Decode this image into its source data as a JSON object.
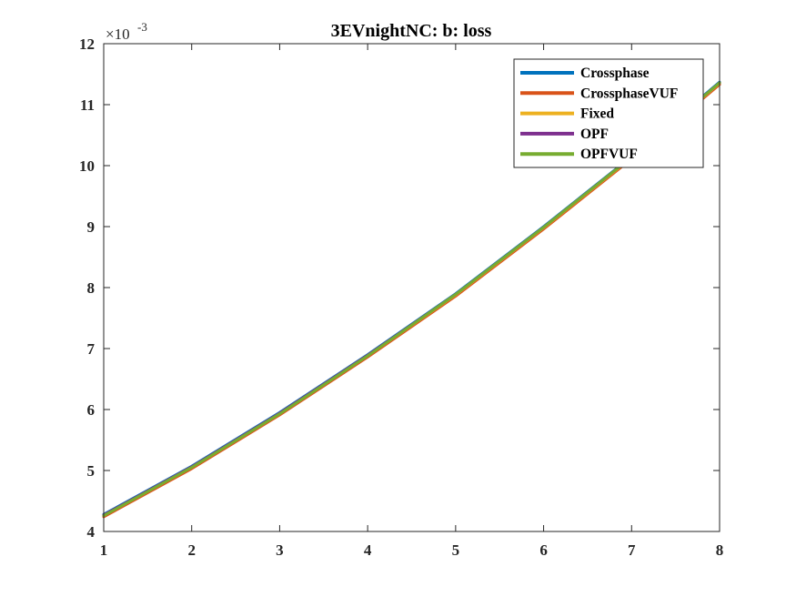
{
  "chart_data": {
    "type": "line",
    "title": "3EVnightNC: b: loss",
    "xlabel": "",
    "ylabel": "",
    "xlim": [
      1,
      8
    ],
    "ylim": [
      0.004,
      0.012
    ],
    "x_ticks": [
      "1",
      "2",
      "3",
      "4",
      "5",
      "6",
      "7",
      "8"
    ],
    "y_ticks": [
      "4",
      "5",
      "6",
      "7",
      "8",
      "9",
      "10",
      "11",
      "12"
    ],
    "y_exponent": {
      "base": "×10",
      "power": "-3"
    },
    "grid": false,
    "legend_position": "top-right",
    "x": [
      1,
      2,
      3,
      4,
      5,
      6,
      7,
      8
    ],
    "series": [
      {
        "name": "Crossphase",
        "color": "#0072BD",
        "values": [
          0.00428,
          0.00507,
          0.00595,
          0.0069,
          0.0079,
          0.009,
          0.01015,
          0.01137
        ]
      },
      {
        "name": "CrossphaseVUF",
        "color": "#D95319",
        "values": [
          0.00424,
          0.00503,
          0.00591,
          0.00686,
          0.00786,
          0.00896,
          0.01011,
          0.01133
        ]
      },
      {
        "name": "Fixed",
        "color": "#EDB120",
        "values": [
          0.00426,
          0.00505,
          0.00593,
          0.00688,
          0.00788,
          0.00898,
          0.01013,
          0.01135
        ]
      },
      {
        "name": "OPF",
        "color": "#7E2F8E",
        "values": [
          0.00427,
          0.00506,
          0.00594,
          0.00689,
          0.00789,
          0.00899,
          0.01014,
          0.01136
        ]
      },
      {
        "name": "OPFVUF",
        "color": "#77AC30",
        "values": [
          0.00426,
          0.00505,
          0.00593,
          0.00688,
          0.00789,
          0.00899,
          0.01014,
          0.01136
        ]
      }
    ]
  }
}
